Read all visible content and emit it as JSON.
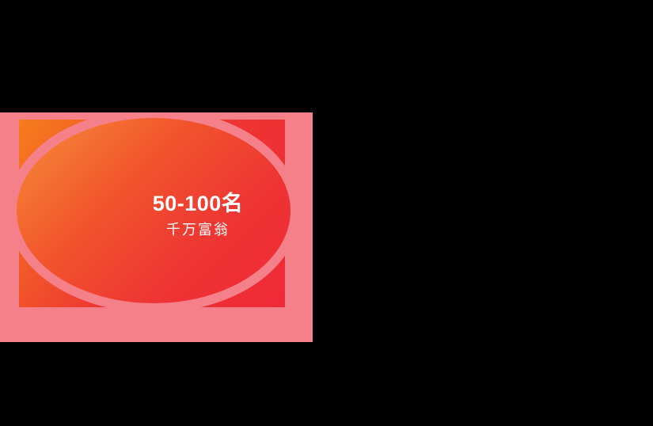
{
  "theme": {
    "page-bg": "#000000",
    "card-pink": "#f5808a",
    "grad-orange": "#f67d1c",
    "grad-orange-light": "#f78e38",
    "grad-orange-red": "#f1542c",
    "grad-red": "#ee3434",
    "grad-red-deep": "#ee2a36",
    "text-color": "#ffffff"
  },
  "card": {
    "rank_range": "50-100名",
    "tier_name": "千万富翁"
  }
}
